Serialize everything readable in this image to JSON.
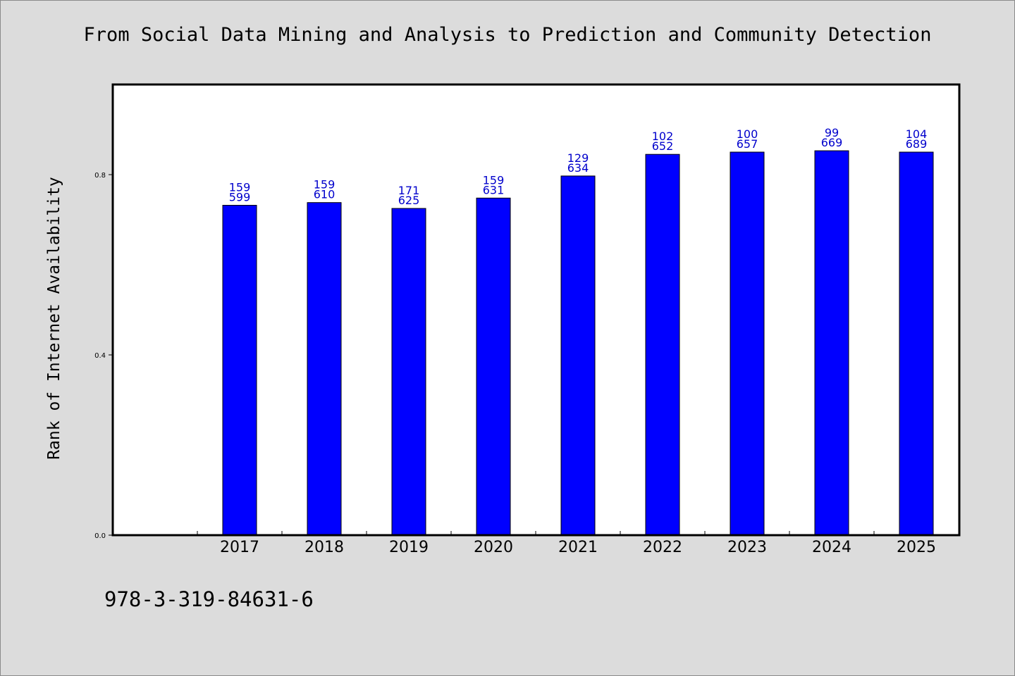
{
  "chart_data": {
    "type": "bar",
    "title": "From Social Data Mining and Analysis to Prediction and Community Detection",
    "ylabel": "Rank of Internet Availability",
    "xlabel": "",
    "categories": [
      "2017",
      "2018",
      "2019",
      "2020",
      "2021",
      "2022",
      "2023",
      "2024",
      "2025"
    ],
    "values": [
      0.732,
      0.738,
      0.725,
      0.748,
      0.797,
      0.845,
      0.85,
      0.853,
      0.85
    ],
    "data_labels": [
      [
        "159",
        "599"
      ],
      [
        "159",
        "610"
      ],
      [
        "171",
        "625"
      ],
      [
        "159",
        "631"
      ],
      [
        "129",
        "634"
      ],
      [
        "102",
        "652"
      ],
      [
        "100",
        "657"
      ],
      [
        "99",
        "669"
      ],
      [
        "104",
        "689"
      ]
    ],
    "yticks": [
      "0.0",
      "0.4",
      "0.8"
    ],
    "ytick_values": [
      0.0,
      0.4,
      0.8
    ],
    "ylim": [
      0.0,
      1.0
    ],
    "grid": false,
    "bar_color": "#0000ff",
    "label_color": "#0000cc"
  },
  "footer": {
    "isbn": "978-3-319-84631-6"
  }
}
